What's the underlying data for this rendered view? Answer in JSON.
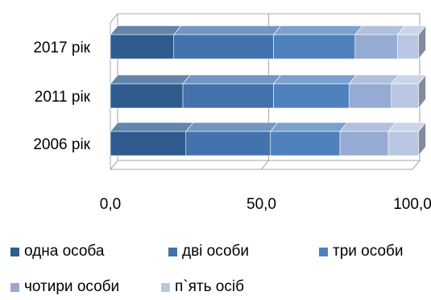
{
  "chart_data": {
    "type": "bar",
    "orientation": "horizontal",
    "stacked": true,
    "three_d": true,
    "categories": [
      "2017 рік",
      "2011 рік",
      "2006 рік"
    ],
    "series": [
      {
        "name": "одна особа",
        "color": "#2f5b8f",
        "values": [
          21,
          24,
          25
        ]
      },
      {
        "name": "дві особи",
        "color": "#4472ad",
        "values": [
          33,
          30,
          28
        ]
      },
      {
        "name": "три особи",
        "color": "#4f81bd",
        "values": [
          27,
          25,
          23
        ]
      },
      {
        "name": "чотири особи",
        "color": "#95abd3",
        "values": [
          14,
          14,
          16
        ]
      },
      {
        "name": "п`ять осіб",
        "color": "#b9c7e2",
        "values": [
          7,
          9,
          10
        ]
      }
    ],
    "x_ticks": [
      "0,0",
      "50,0",
      "100,0"
    ],
    "xlim": [
      0,
      100
    ],
    "grid": true,
    "legend_position": "bottom"
  }
}
